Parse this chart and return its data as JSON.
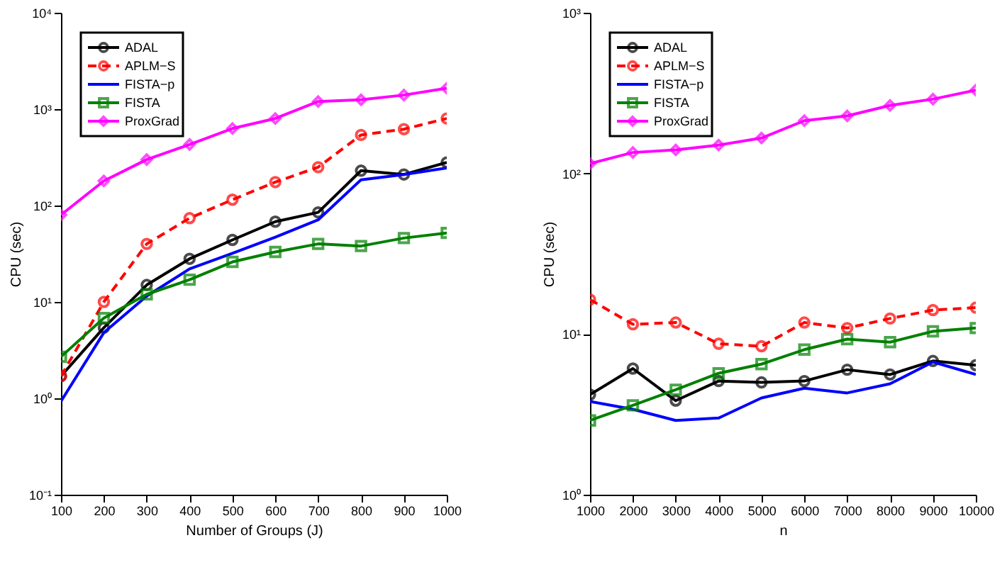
{
  "chart_data": [
    {
      "type": "line",
      "xlabel": "Number of Groups (J)",
      "ylabel": "CPU (sec)",
      "x": [
        100,
        200,
        300,
        400,
        500,
        600,
        700,
        800,
        900,
        1000
      ],
      "log": "y",
      "xlim": [
        100,
        1000
      ],
      "xticks": [
        100,
        200,
        300,
        400,
        500,
        600,
        700,
        800,
        900,
        1000
      ],
      "ylim": [
        0.1,
        10000
      ],
      "yticks": [
        {
          "value": 0.1,
          "label": "10⁻¹"
        },
        {
          "value": 1,
          "label": "10⁰"
        },
        {
          "value": 10,
          "label": "10¹"
        },
        {
          "value": 100,
          "label": "10²"
        },
        {
          "value": 1000,
          "label": "10³"
        },
        {
          "value": 10000,
          "label": "10⁴"
        }
      ],
      "grid": false,
      "legend": "top left",
      "series": [
        {
          "name": "ADAL",
          "color": "#000000",
          "marker": "circle",
          "line_style": "solid",
          "values": [
            1.7,
            5.4,
            15,
            28,
            44,
            68,
            85,
            230,
            210,
            280
          ]
        },
        {
          "name": "APLM−S",
          "color": "#ff0000",
          "marker": "circle",
          "line_style": "dashed",
          "values": [
            1.7,
            10,
            40,
            74,
            115,
            175,
            250,
            540,
            620,
            800
          ]
        },
        {
          "name": "FISTA−p",
          "color": "#0000ff",
          "marker": "none",
          "line_style": "solid",
          "values": [
            0.93,
            4.8,
            11.5,
            22,
            32,
            47,
            71,
            185,
            210,
            245
          ]
        },
        {
          "name": "FISTA",
          "color": "#008000",
          "marker": "square",
          "line_style": "solid",
          "values": [
            2.7,
            6.8,
            12,
            17,
            26,
            33,
            40,
            38,
            46,
            52
          ]
        },
        {
          "name": "ProxGrad",
          "color": "#ff00ff",
          "marker": "diamond",
          "line_style": "solid",
          "values": [
            80,
            180,
            300,
            430,
            630,
            800,
            1200,
            1250,
            1400,
            1650
          ]
        }
      ]
    },
    {
      "type": "line",
      "xlabel": "n",
      "ylabel": "CPU (sec)",
      "x": [
        1000,
        2000,
        3000,
        4000,
        5000,
        6000,
        7000,
        8000,
        9000,
        10000
      ],
      "log": "y",
      "xlim": [
        1000,
        10000
      ],
      "xticks": [
        1000,
        2000,
        3000,
        4000,
        5000,
        6000,
        7000,
        8000,
        9000,
        10000
      ],
      "ylim": [
        1,
        1000
      ],
      "yticks": [
        {
          "value": 1,
          "label": "10⁰"
        },
        {
          "value": 10,
          "label": "10¹"
        },
        {
          "value": 100,
          "label": "10²"
        },
        {
          "value": 1000,
          "label": "10³"
        }
      ],
      "grid": false,
      "legend": "top left",
      "series": [
        {
          "name": "ADAL",
          "color": "#000000",
          "marker": "circle",
          "line_style": "solid",
          "values": [
            4.2,
            6.1,
            3.85,
            5.1,
            5.0,
            5.1,
            6.0,
            5.6,
            6.8,
            6.4
          ]
        },
        {
          "name": "APLM−S",
          "color": "#ff0000",
          "marker": "circle",
          "line_style": "dashed",
          "values": [
            16.4,
            11.5,
            11.8,
            8.7,
            8.4,
            11.8,
            10.9,
            12.5,
            14.1,
            14.6
          ]
        },
        {
          "name": "FISTA−p",
          "color": "#0000ff",
          "marker": "none",
          "line_style": "solid",
          "values": [
            3.8,
            3.4,
            2.9,
            3.0,
            4.0,
            4.6,
            4.3,
            4.9,
            6.7,
            5.6
          ]
        },
        {
          "name": "FISTA",
          "color": "#008000",
          "marker": "square",
          "line_style": "solid",
          "values": [
            2.9,
            3.6,
            4.5,
            5.7,
            6.5,
            8.0,
            9.3,
            8.9,
            10.4,
            10.9
          ]
        },
        {
          "name": "ProxGrad",
          "color": "#ff00ff",
          "marker": "diamond",
          "line_style": "solid",
          "values": [
            115,
            135,
            140,
            150,
            166,
            213,
            228,
            265,
            290,
            330
          ]
        }
      ]
    }
  ]
}
